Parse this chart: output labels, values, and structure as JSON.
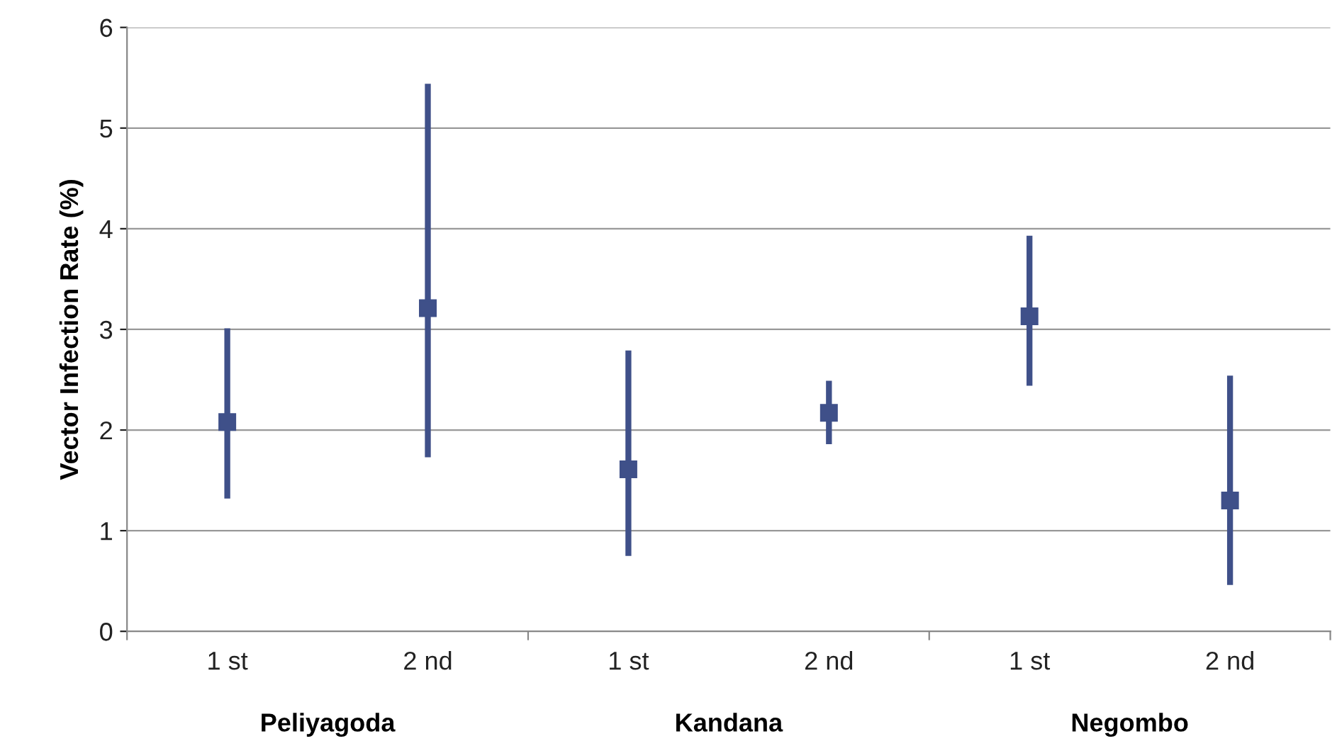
{
  "chart_data": {
    "type": "scatter",
    "ylabel": "Vector Infection Rate (%)",
    "categories": [
      "1 st",
      "2 nd",
      "1 st",
      "2 nd",
      "1 st",
      "2 nd"
    ],
    "annotations": [
      "Peliyagoda",
      "Kandana",
      "Negombo"
    ],
    "series": [
      {
        "color": "#3f5089",
        "values": [
          2.08,
          3.21,
          1.61,
          2.17,
          3.13,
          1.3
        ],
        "errors": [
          [
            1.32,
            3.01
          ],
          [
            1.73,
            5.44
          ],
          [
            0.75,
            2.79
          ],
          [
            1.86,
            2.49
          ],
          [
            2.44,
            3.93
          ],
          [
            0.46,
            2.54
          ]
        ]
      }
    ],
    "ylim": [
      0,
      6
    ],
    "yticks": [
      0,
      1,
      2,
      3,
      4,
      5,
      6
    ],
    "grid": "y",
    "marker": "square",
    "legend": false
  }
}
